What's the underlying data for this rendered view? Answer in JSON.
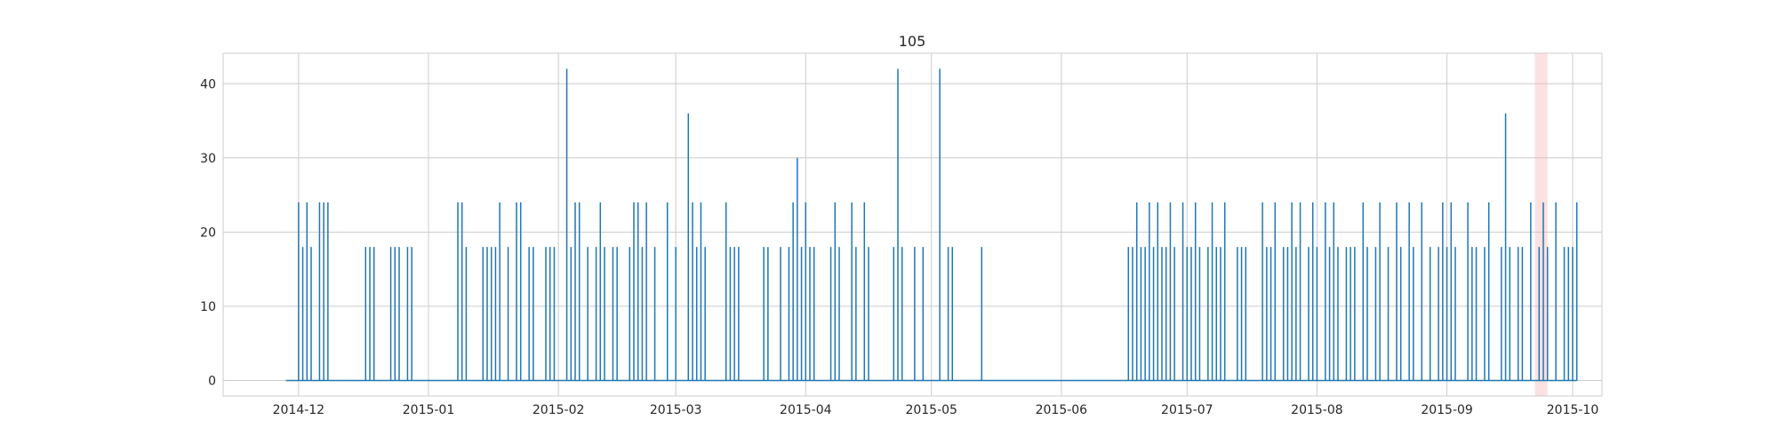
{
  "chart_data": {
    "type": "line",
    "title": "105",
    "xlabel": "",
    "ylabel": "",
    "x_range": [
      "2014-11-13",
      "2015-10-08"
    ],
    "ylim": [
      -2.1,
      44.1
    ],
    "x_ticks": [
      "2014-12-01",
      "2015-01-01",
      "2015-02-01",
      "2015-03-01",
      "2015-04-01",
      "2015-05-01",
      "2015-06-01",
      "2015-07-01",
      "2015-08-01",
      "2015-09-01",
      "2015-10-01"
    ],
    "x_tick_labels": [
      "2014-12",
      "2015-01",
      "2015-02",
      "2015-03",
      "2015-04",
      "2015-05",
      "2015-06",
      "2015-07",
      "2015-08",
      "2015-09",
      "2015-10"
    ],
    "y_ticks": [
      0,
      10,
      20,
      30,
      40
    ],
    "y_tick_labels": [
      "0",
      "10",
      "20",
      "30",
      "40"
    ],
    "grid": true,
    "highlight_span": [
      "2015-09-22",
      "2015-09-25"
    ],
    "series": [
      {
        "color": "#1f77b4",
        "points": [
          [
            "2014-11-28",
            0
          ],
          [
            "2014-12-01",
            24
          ],
          [
            "2014-12-02",
            18
          ],
          [
            "2014-12-03",
            24
          ],
          [
            "2014-12-04",
            18
          ],
          [
            "2014-12-06",
            24
          ],
          [
            "2014-12-07",
            24
          ],
          [
            "2014-12-08",
            24
          ],
          [
            "2014-12-17",
            18
          ],
          [
            "2014-12-18",
            18
          ],
          [
            "2014-12-19",
            18
          ],
          [
            "2014-12-23",
            18
          ],
          [
            "2014-12-24",
            18
          ],
          [
            "2014-12-25",
            18
          ],
          [
            "2014-12-27",
            18
          ],
          [
            "2014-12-28",
            18
          ],
          [
            "2015-01-08",
            24
          ],
          [
            "2015-01-09",
            24
          ],
          [
            "2015-01-10",
            18
          ],
          [
            "2015-01-14",
            18
          ],
          [
            "2015-01-15",
            18
          ],
          [
            "2015-01-16",
            18
          ],
          [
            "2015-01-17",
            18
          ],
          [
            "2015-01-18",
            24
          ],
          [
            "2015-01-20",
            18
          ],
          [
            "2015-01-22",
            24
          ],
          [
            "2015-01-23",
            24
          ],
          [
            "2015-01-25",
            18
          ],
          [
            "2015-01-26",
            18
          ],
          [
            "2015-01-29",
            18
          ],
          [
            "2015-01-30",
            18
          ],
          [
            "2015-01-31",
            18
          ],
          [
            "2015-02-03",
            42
          ],
          [
            "2015-02-04",
            18
          ],
          [
            "2015-02-05",
            24
          ],
          [
            "2015-02-06",
            24
          ],
          [
            "2015-02-08",
            18
          ],
          [
            "2015-02-10",
            18
          ],
          [
            "2015-02-11",
            24
          ],
          [
            "2015-02-12",
            18
          ],
          [
            "2015-02-14",
            18
          ],
          [
            "2015-02-15",
            18
          ],
          [
            "2015-02-18",
            18
          ],
          [
            "2015-02-19",
            24
          ],
          [
            "2015-02-20",
            24
          ],
          [
            "2015-02-21",
            18
          ],
          [
            "2015-02-22",
            24
          ],
          [
            "2015-02-24",
            18
          ],
          [
            "2015-02-27",
            24
          ],
          [
            "2015-03-01",
            18
          ],
          [
            "2015-03-04",
            36
          ],
          [
            "2015-03-05",
            24
          ],
          [
            "2015-03-06",
            18
          ],
          [
            "2015-03-07",
            24
          ],
          [
            "2015-03-08",
            18
          ],
          [
            "2015-03-13",
            24
          ],
          [
            "2015-03-14",
            18
          ],
          [
            "2015-03-15",
            18
          ],
          [
            "2015-03-16",
            18
          ],
          [
            "2015-03-22",
            18
          ],
          [
            "2015-03-23",
            18
          ],
          [
            "2015-03-26",
            18
          ],
          [
            "2015-03-28",
            18
          ],
          [
            "2015-03-29",
            24
          ],
          [
            "2015-03-30",
            30
          ],
          [
            "2015-03-31",
            18
          ],
          [
            "2015-04-01",
            24
          ],
          [
            "2015-04-02",
            18
          ],
          [
            "2015-04-03",
            18
          ],
          [
            "2015-04-07",
            18
          ],
          [
            "2015-04-08",
            24
          ],
          [
            "2015-04-09",
            18
          ],
          [
            "2015-04-12",
            24
          ],
          [
            "2015-04-13",
            18
          ],
          [
            "2015-04-15",
            24
          ],
          [
            "2015-04-16",
            18
          ],
          [
            "2015-04-22",
            18
          ],
          [
            "2015-04-23",
            42
          ],
          [
            "2015-04-24",
            18
          ],
          [
            "2015-04-27",
            18
          ],
          [
            "2015-04-29",
            18
          ],
          [
            "2015-05-03",
            42
          ],
          [
            "2015-05-05",
            18
          ],
          [
            "2015-05-06",
            18
          ],
          [
            "2015-05-13",
            18
          ],
          [
            "2015-06-17",
            18
          ],
          [
            "2015-06-18",
            18
          ],
          [
            "2015-06-19",
            24
          ],
          [
            "2015-06-20",
            18
          ],
          [
            "2015-06-21",
            18
          ],
          [
            "2015-06-22",
            24
          ],
          [
            "2015-06-23",
            18
          ],
          [
            "2015-06-24",
            24
          ],
          [
            "2015-06-25",
            18
          ],
          [
            "2015-06-26",
            18
          ],
          [
            "2015-06-27",
            24
          ],
          [
            "2015-06-28",
            18
          ],
          [
            "2015-06-30",
            24
          ],
          [
            "2015-07-01",
            18
          ],
          [
            "2015-07-02",
            18
          ],
          [
            "2015-07-03",
            24
          ],
          [
            "2015-07-04",
            18
          ],
          [
            "2015-07-06",
            18
          ],
          [
            "2015-07-07",
            24
          ],
          [
            "2015-07-08",
            18
          ],
          [
            "2015-07-09",
            18
          ],
          [
            "2015-07-10",
            24
          ],
          [
            "2015-07-13",
            18
          ],
          [
            "2015-07-14",
            18
          ],
          [
            "2015-07-15",
            18
          ],
          [
            "2015-07-19",
            24
          ],
          [
            "2015-07-20",
            18
          ],
          [
            "2015-07-21",
            18
          ],
          [
            "2015-07-22",
            24
          ],
          [
            "2015-07-24",
            18
          ],
          [
            "2015-07-25",
            18
          ],
          [
            "2015-07-26",
            24
          ],
          [
            "2015-07-27",
            18
          ],
          [
            "2015-07-28",
            24
          ],
          [
            "2015-07-30",
            18
          ],
          [
            "2015-07-31",
            24
          ],
          [
            "2015-08-01",
            18
          ],
          [
            "2015-08-03",
            24
          ],
          [
            "2015-08-04",
            18
          ],
          [
            "2015-08-05",
            24
          ],
          [
            "2015-08-06",
            18
          ],
          [
            "2015-08-08",
            18
          ],
          [
            "2015-08-09",
            18
          ],
          [
            "2015-08-10",
            18
          ],
          [
            "2015-08-12",
            24
          ],
          [
            "2015-08-13",
            18
          ],
          [
            "2015-08-15",
            18
          ],
          [
            "2015-08-16",
            24
          ],
          [
            "2015-08-18",
            18
          ],
          [
            "2015-08-20",
            24
          ],
          [
            "2015-08-21",
            18
          ],
          [
            "2015-08-23",
            24
          ],
          [
            "2015-08-24",
            18
          ],
          [
            "2015-08-26",
            24
          ],
          [
            "2015-08-28",
            18
          ],
          [
            "2015-08-30",
            18
          ],
          [
            "2015-08-31",
            24
          ],
          [
            "2015-09-01",
            18
          ],
          [
            "2015-09-02",
            24
          ],
          [
            "2015-09-03",
            18
          ],
          [
            "2015-09-06",
            24
          ],
          [
            "2015-09-07",
            18
          ],
          [
            "2015-09-08",
            18
          ],
          [
            "2015-09-10",
            18
          ],
          [
            "2015-09-11",
            24
          ],
          [
            "2015-09-14",
            18
          ],
          [
            "2015-09-15",
            36
          ],
          [
            "2015-09-16",
            18
          ],
          [
            "2015-09-18",
            18
          ],
          [
            "2015-09-19",
            18
          ],
          [
            "2015-09-21",
            24
          ],
          [
            "2015-09-23",
            18
          ],
          [
            "2015-09-24",
            24
          ],
          [
            "2015-09-25",
            18
          ],
          [
            "2015-09-27",
            24
          ],
          [
            "2015-09-29",
            18
          ],
          [
            "2015-09-30",
            18
          ],
          [
            "2015-10-01",
            18
          ],
          [
            "2015-10-02",
            24
          ]
        ]
      }
    ]
  }
}
